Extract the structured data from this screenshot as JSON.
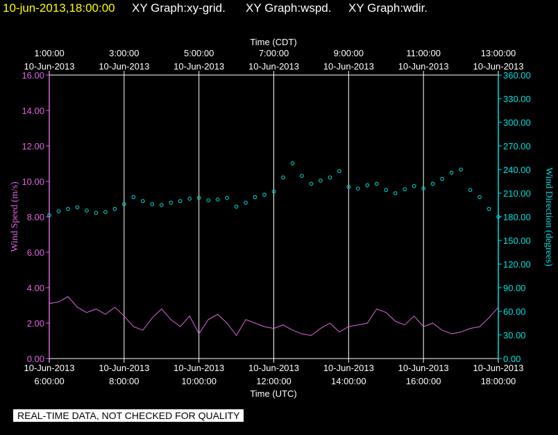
{
  "header": {
    "datetime": "10-jun-2013,18:00:00",
    "graph_grid": "XY Graph:xy-grid.",
    "graph_wspd": "XY Graph:wspd.",
    "graph_wdir": "XY Graph:wdir."
  },
  "colors": {
    "speed": "#e066e0",
    "direction": "#00e0e0",
    "grid": "#ffffff",
    "background": "#000000"
  },
  "footer_note": "REAL-TIME DATA, NOT CHECKED FOR QUALITY",
  "chart_data": {
    "type": "scatter",
    "title": "XY Graph:xy-grid. XY Graph:wspd. XY Graph:wdir.",
    "x_top_label": "Time (CDT)",
    "x_bottom_label": "Time (UTC)",
    "xlim_hours_utc": [
      6,
      18
    ],
    "x_top_ticks": [
      {
        "hour": 6,
        "time": "1:00:00",
        "date": "10-Jun-2013"
      },
      {
        "hour": 8,
        "time": "3:00:00",
        "date": "10-Jun-2013"
      },
      {
        "hour": 10,
        "time": "5:00:00",
        "date": "10-Jun-2013"
      },
      {
        "hour": 12,
        "time": "7:00:00",
        "date": "10-Jun-2013"
      },
      {
        "hour": 14,
        "time": "9:00:00",
        "date": "10-Jun-2013"
      },
      {
        "hour": 16,
        "time": "11:00:00",
        "date": "10-Jun-2013"
      },
      {
        "hour": 18,
        "time": "13:00:00",
        "date": "10-Jun-2013"
      }
    ],
    "x_bottom_ticks": [
      {
        "hour": 6,
        "date": "10-Jun-2013",
        "time": "6:00:00"
      },
      {
        "hour": 8,
        "date": "10-Jun-2013",
        "time": "8:00:00"
      },
      {
        "hour": 10,
        "date": "10-Jun-2013",
        "time": "10:00:00"
      },
      {
        "hour": 12,
        "date": "10-Jun-2013",
        "time": "12:00:00"
      },
      {
        "hour": 14,
        "date": "10-Jun-2013",
        "time": "14:00:00"
      },
      {
        "hour": 16,
        "date": "10-Jun-2013",
        "time": "16:00:00"
      },
      {
        "hour": 18,
        "date": "10-Jun-2013",
        "time": "18:00:00"
      }
    ],
    "ylabel_left": "Wind Speed (m/s)",
    "ylim_left": [
      0,
      16
    ],
    "yticks_left": [
      "0.00",
      "2.00",
      "4.00",
      "6.00",
      "8.00",
      "10.00",
      "12.00",
      "14.00",
      "16.00"
    ],
    "ylabel_right": "Wind Direction (degrees)",
    "ylim_right": [
      0,
      360
    ],
    "yticks_right": [
      "0.00",
      "30.00",
      "60.00",
      "90.00",
      "120.00",
      "150.00",
      "180.00",
      "210.00",
      "240.00",
      "270.00",
      "300.00",
      "330.00",
      "360.00"
    ],
    "series": [
      {
        "name": "Wind Speed (m/s)",
        "style": "line",
        "axis": "left",
        "x_hours_utc": [
          6,
          6.25,
          6.5,
          6.75,
          7,
          7.25,
          7.5,
          7.75,
          8,
          8.25,
          8.5,
          8.75,
          9,
          9.25,
          9.5,
          9.75,
          10,
          10.25,
          10.5,
          10.75,
          11,
          11.25,
          11.5,
          11.75,
          12,
          12.25,
          12.5,
          12.75,
          13,
          13.25,
          13.5,
          13.75,
          14,
          14.25,
          14.5,
          14.75,
          15,
          15.25,
          15.5,
          15.75,
          16,
          16.25,
          16.5,
          16.75,
          17,
          17.25,
          17.5,
          17.75,
          18
        ],
        "values": [
          3.1,
          3.2,
          3.5,
          2.9,
          2.6,
          2.8,
          2.5,
          2.9,
          2.4,
          1.8,
          1.6,
          2.3,
          2.8,
          2.2,
          1.8,
          2.4,
          1.4,
          2.2,
          2.5,
          2.0,
          1.3,
          2.2,
          2.0,
          1.8,
          1.7,
          1.9,
          1.6,
          1.4,
          1.3,
          1.7,
          2.0,
          1.5,
          1.8,
          1.9,
          2.0,
          2.8,
          2.6,
          2.1,
          1.9,
          2.4,
          1.8,
          2.0,
          1.6,
          1.4,
          1.5,
          1.7,
          1.8,
          2.3,
          2.9
        ]
      },
      {
        "name": "Wind Direction (degrees)",
        "style": "scatter",
        "axis": "right",
        "x_hours_utc": [
          6,
          6.25,
          6.5,
          6.75,
          7,
          7.25,
          7.5,
          7.75,
          8,
          8.25,
          8.5,
          8.75,
          9,
          9.25,
          9.5,
          9.75,
          10,
          10.25,
          10.5,
          10.75,
          11,
          11.25,
          11.5,
          11.75,
          12,
          12.25,
          12.5,
          12.75,
          13,
          13.25,
          13.5,
          13.75,
          14,
          14.25,
          14.5,
          14.75,
          15,
          15.25,
          15.5,
          15.75,
          16,
          16.25,
          16.5,
          16.75,
          17,
          17.25,
          17.5,
          17.75,
          18
        ],
        "values": [
          182,
          187,
          190,
          192,
          188,
          185,
          186,
          190,
          196,
          205,
          200,
          196,
          195,
          198,
          200,
          203,
          204,
          201,
          202,
          204,
          193,
          198,
          205,
          208,
          212,
          230,
          248,
          232,
          222,
          226,
          230,
          238,
          218,
          216,
          220,
          222,
          214,
          210,
          215,
          219,
          216,
          222,
          228,
          236,
          240,
          214,
          205,
          190,
          180
        ]
      }
    ]
  }
}
